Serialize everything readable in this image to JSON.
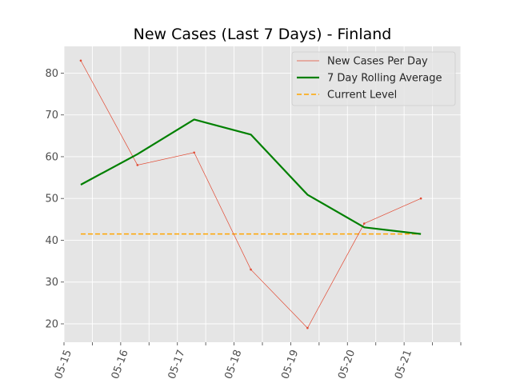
{
  "chart_data": {
    "type": "line",
    "title": "New Cases (Last 7 Days) - Finland",
    "xlabel": "",
    "ylabel": "",
    "x_dates": [
      "2021-05-15",
      "2021-05-16",
      "2021-05-17",
      "2021-05-18",
      "2021-05-19",
      "2021-05-20",
      "2021-05-21"
    ],
    "xtick_labels": [
      "05-15",
      "05-16",
      "05-17",
      "05-18",
      "05-19",
      "05-20",
      "05-21"
    ],
    "xlim": [
      "2021-05-15",
      "2021-05-22"
    ],
    "yticks": [
      20,
      30,
      40,
      50,
      60,
      70,
      80
    ],
    "ylim": [
      15.6,
      86.4
    ],
    "grid": true,
    "style": "ggplot",
    "legend_position": "top-right",
    "series": [
      {
        "name": "New Cases Per Day",
        "kind": "line-markers",
        "color": "#e24a33",
        "values": [
          83,
          58,
          61,
          33,
          19,
          44,
          50
        ]
      },
      {
        "name": "7 Day Rolling Average",
        "kind": "line",
        "color": "#008000",
        "values": [
          53.3,
          60.6,
          68.9,
          65.3,
          50.9,
          43.1,
          41.5
        ]
      },
      {
        "name": "Current Level",
        "kind": "dashed",
        "color": "#ffa500",
        "values": [
          41.5,
          41.5,
          41.5,
          41.5,
          41.5,
          41.5,
          41.5
        ]
      }
    ]
  }
}
